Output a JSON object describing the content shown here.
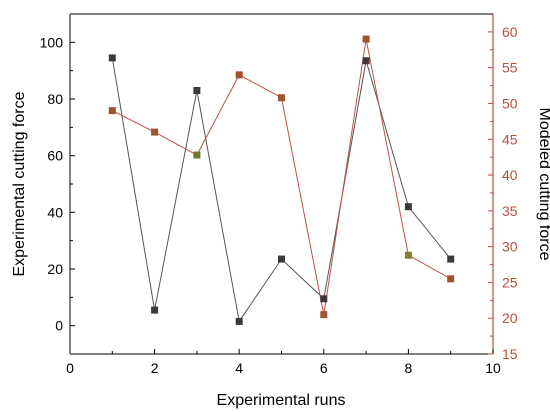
{
  "chart_data": {
    "type": "line",
    "title": "",
    "xlabel": "Experimental runs",
    "ylabel": "Experimental cutting force",
    "y2label": "Modeled cutting force",
    "xlim": [
      0,
      10
    ],
    "ylim": [
      -10,
      110
    ],
    "y2lim": [
      15,
      62.5
    ],
    "x_ticks": [
      0,
      2,
      4,
      6,
      8,
      10
    ],
    "y_ticks": [
      0,
      20,
      40,
      60,
      80,
      100
    ],
    "y2_ticks": [
      15,
      20,
      25,
      30,
      35,
      40,
      45,
      50,
      55,
      60
    ],
    "grid": false,
    "legend": "none",
    "x": [
      1,
      2,
      3,
      4,
      5,
      6,
      7,
      8,
      9
    ],
    "series": [
      {
        "axis": "left",
        "values": [
          94.5,
          5.5,
          83,
          1.5,
          23.5,
          9.5,
          93.5,
          42,
          23.5
        ],
        "line_color": "#555555",
        "marker_color": "#3a3a3a"
      },
      {
        "axis": "right",
        "values": [
          49,
          46,
          42.8,
          54,
          50.8,
          20.5,
          59,
          28.8,
          25.5
        ],
        "line_color": "#c0504d",
        "marker_colors": [
          "#a0522d",
          "#a0522d",
          "#6b7a2a",
          "#a0522d",
          "#a0522d",
          "#a0522d",
          "#a0522d",
          "#8b7a30",
          "#a0522d"
        ]
      }
    ],
    "colors": {
      "left_axis": "#000000",
      "right_axis": "#b8503a"
    }
  }
}
